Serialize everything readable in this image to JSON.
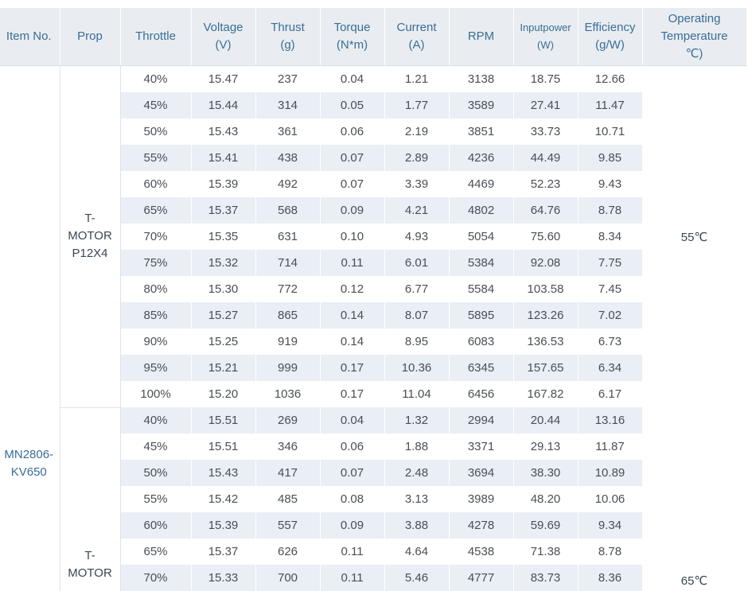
{
  "table": {
    "headers": {
      "item_no": "Item No.",
      "prop": "Prop",
      "throttle": "Throttle",
      "voltage": [
        "Voltage",
        "(V)"
      ],
      "thrust": [
        "Thrust",
        "(g)"
      ],
      "torque": [
        "Torque",
        "(N*m)"
      ],
      "current": [
        "Current",
        "(A)"
      ],
      "rpm": "RPM",
      "inputpower": [
        "Inputpower",
        "(W)"
      ],
      "efficiency": [
        "Efficiency",
        "(g/W)"
      ],
      "operating_temperature": [
        "Operating",
        "Temperature",
        "℃)"
      ]
    },
    "item": [
      "MN2806-",
      "KV650"
    ],
    "groups": [
      {
        "prop": [
          "T-",
          "MOTOR",
          "P12X4"
        ],
        "temperature": "55℃",
        "rows": [
          [
            "40%",
            "15.47",
            "237",
            "0.04",
            "1.21",
            "3138",
            "18.75",
            "12.66"
          ],
          [
            "45%",
            "15.44",
            "314",
            "0.05",
            "1.77",
            "3589",
            "27.41",
            "11.47"
          ],
          [
            "50%",
            "15.43",
            "361",
            "0.06",
            "2.19",
            "3851",
            "33.73",
            "10.71"
          ],
          [
            "55%",
            "15.41",
            "438",
            "0.07",
            "2.89",
            "4236",
            "44.49",
            "9.85"
          ],
          [
            "60%",
            "15.39",
            "492",
            "0.07",
            "3.39",
            "4469",
            "52.23",
            "9.43"
          ],
          [
            "65%",
            "15.37",
            "568",
            "0.09",
            "4.21",
            "4802",
            "64.76",
            "8.78"
          ],
          [
            "70%",
            "15.35",
            "631",
            "0.10",
            "4.93",
            "5054",
            "75.60",
            "8.34"
          ],
          [
            "75%",
            "15.32",
            "714",
            "0.11",
            "6.01",
            "5384",
            "92.08",
            "7.75"
          ],
          [
            "80%",
            "15.30",
            "772",
            "0.12",
            "6.77",
            "5584",
            "103.58",
            "7.45"
          ],
          [
            "85%",
            "15.27",
            "865",
            "0.14",
            "8.07",
            "5895",
            "123.26",
            "7.02"
          ],
          [
            "90%",
            "15.25",
            "919",
            "0.14",
            "8.95",
            "6083",
            "136.53",
            "6.73"
          ],
          [
            "95%",
            "15.21",
            "999",
            "0.17",
            "10.36",
            "6345",
            "157.65",
            "6.34"
          ],
          [
            "100%",
            "15.20",
            "1036",
            "0.17",
            "11.04",
            "6456",
            "167.82",
            "6.17"
          ]
        ]
      },
      {
        "prop": [
          "T-",
          "MOTOR"
        ],
        "temperature": "65℃",
        "rows": [
          [
            "40%",
            "15.51",
            "269",
            "0.04",
            "1.32",
            "2994",
            "20.44",
            "13.16"
          ],
          [
            "45%",
            "15.51",
            "346",
            "0.06",
            "1.88",
            "3371",
            "29.13",
            "11.87"
          ],
          [
            "50%",
            "15.43",
            "417",
            "0.07",
            "2.48",
            "3694",
            "38.30",
            "10.89"
          ],
          [
            "55%",
            "15.42",
            "485",
            "0.08",
            "3.13",
            "3989",
            "48.20",
            "10.06"
          ],
          [
            "60%",
            "15.39",
            "557",
            "0.09",
            "3.88",
            "4278",
            "59.69",
            "9.34"
          ],
          [
            "65%",
            "15.37",
            "626",
            "0.11",
            "4.64",
            "4538",
            "71.38",
            "8.78"
          ],
          [
            "70%",
            "15.33",
            "700",
            "0.11",
            "5.46",
            "4777",
            "83.73",
            "8.36"
          ]
        ]
      }
    ]
  }
}
